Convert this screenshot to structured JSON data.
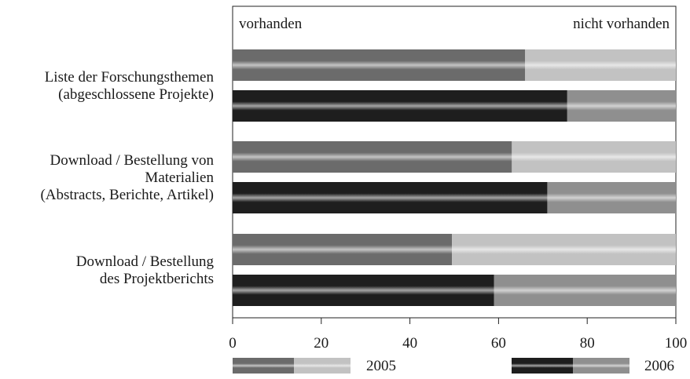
{
  "chart_data": {
    "type": "bar",
    "orientation": "horizontal",
    "stacked": true,
    "categories": [
      [
        "Liste der Forschungsthemen",
        "(abgeschlossene Projekte)"
      ],
      [
        "Download / Bestellung von",
        "Materialien",
        "(Abstracts, Berichte, Artikel)"
      ],
      [
        "Download / Bestellung",
        "des Projektberichts"
      ]
    ],
    "series": [
      {
        "name": "2005",
        "vorhanden": [
          66,
          63,
          49.5
        ],
        "nicht_vorhanden": [
          34,
          37,
          50.5
        ],
        "colors": {
          "vorhanden": "#6b6b6b",
          "nicht_vorhanden": "#c2c2c2"
        }
      },
      {
        "name": "2006",
        "vorhanden": [
          75.5,
          71,
          59
        ],
        "nicht_vorhanden": [
          24.5,
          29,
          41
        ],
        "colors": {
          "vorhanden": "#1e1e1e",
          "nicht_vorhanden": "#8f8f8f"
        }
      }
    ],
    "inner_labels": {
      "left": "vorhanden",
      "right": "nicht vorhanden"
    },
    "xlim": [
      0,
      100
    ],
    "xticks": [
      0,
      20,
      40,
      60,
      80,
      100
    ],
    "grid": false,
    "legend_position": "bottom"
  }
}
